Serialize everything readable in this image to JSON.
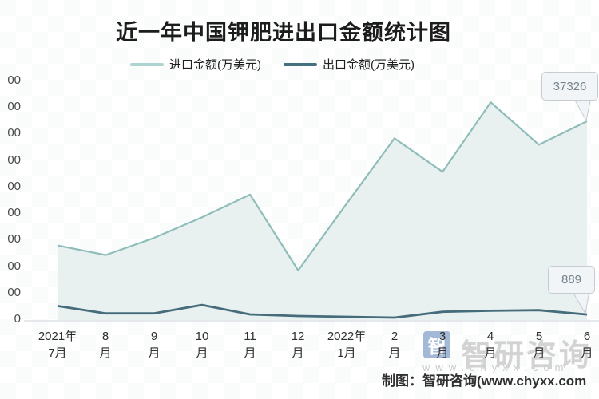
{
  "title": "近一年中国钾肥进出口金额统计图",
  "legend": [
    {
      "label": "进口金额(万美元)",
      "color": "#aed3d1"
    },
    {
      "label": "出口金额(万美元)",
      "color": "#47707f"
    }
  ],
  "y_axis": {
    "visible_labels_top_to_bottom": [
      "00",
      "00",
      "00",
      "00",
      "00",
      "00",
      "00",
      "00",
      "00",
      "0"
    ],
    "note_full_scale": "0 to 45000 step 5000, labels clipped at left edge of screenshot"
  },
  "x_axis": {
    "labels": [
      {
        "line1": "2021年",
        "line2": "7月"
      },
      {
        "line1": "8",
        "line2": "月"
      },
      {
        "line1": "9",
        "line2": "月"
      },
      {
        "line1": "10",
        "line2": "月"
      },
      {
        "line1": "11",
        "line2": "月"
      },
      {
        "line1": "12",
        "line2": "月"
      },
      {
        "line1": "2022年",
        "line2": "1月"
      },
      {
        "line1": "2",
        "line2": "月"
      },
      {
        "line1": "3",
        "line2": "月"
      },
      {
        "line1": "4",
        "line2": "月"
      },
      {
        "line1": "5",
        "line2": "月"
      },
      {
        "line1": "6",
        "line2": "月"
      }
    ]
  },
  "tooltips": {
    "import_last": "37326",
    "export_last": "889"
  },
  "watermark": {
    "logo_char": "智",
    "brand": "智研咨询",
    "site": "www.chyxx.com"
  },
  "credit": "制图：智研咨询(www.chyxx.com",
  "colors": {
    "import_line": "#8fbdba",
    "import_fill": "#e8f1f0",
    "export_line": "#466c7c",
    "axis_line": "#dde2e6",
    "tooltip_bg": "#f2f5f7",
    "tooltip_border": "#c7ccd1",
    "tooltip_text": "#75828b",
    "watermark_gray": "#d3d3d3",
    "watermark_logo_blue": "#8da7cd"
  },
  "chart_data": {
    "type": "area",
    "title": "近一年中国钾肥进出口金额统计图",
    "x": [
      "2021-07",
      "2021-08",
      "2021-09",
      "2021-10",
      "2021-11",
      "2021-12",
      "2022-01",
      "2022-02",
      "2022-03",
      "2022-04",
      "2022-05",
      "2022-06"
    ],
    "series": [
      {
        "name": "进口金额(万美元)",
        "color": "#8fbdba",
        "fill": "#e8f1f0",
        "values": [
          13900,
          12100,
          15300,
          19200,
          23500,
          9200,
          21700,
          34100,
          27800,
          40900,
          32900,
          37326
        ]
      },
      {
        "name": "出口金额(万美元)",
        "color": "#466c7c",
        "values": [
          2500,
          1100,
          1100,
          2700,
          900,
          600,
          450,
          300,
          1400,
          1600,
          1700,
          889
        ]
      }
    ],
    "ylabel": "",
    "xlabel": "",
    "ylim": [
      0,
      45000
    ],
    "y_step": 5000,
    "grid": false,
    "legend_position": "top",
    "data_labels": {
      "进口金额(万美元)_last": 37326,
      "出口金额(万美元)_last": 889
    }
  }
}
